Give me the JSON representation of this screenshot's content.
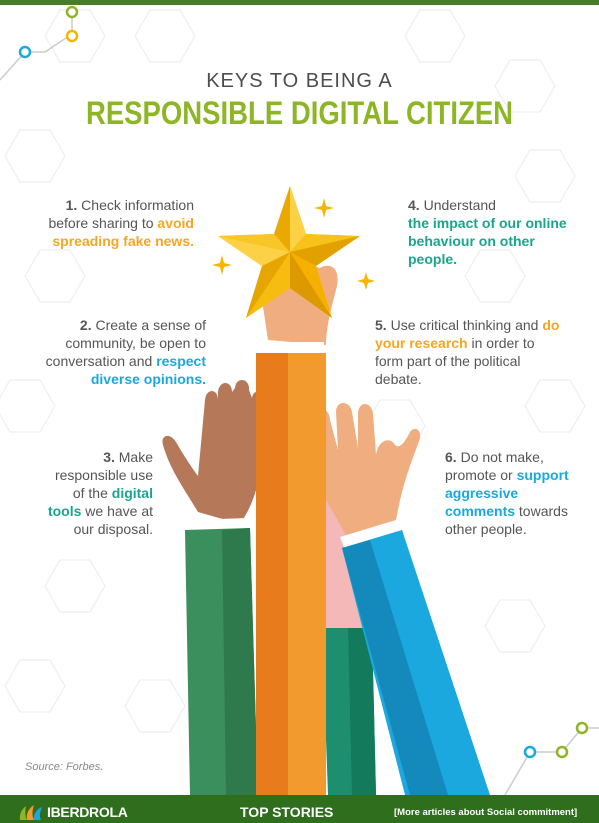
{
  "header": {
    "kicker": "KEYS TO BEING A",
    "title": "RESPONSIBLE DIGITAL CITIZEN"
  },
  "keys": [
    {
      "num": "1.",
      "pre": "Check information before sharing to",
      "highlight": "avoid spreading fake news.",
      "post": "",
      "highlight_color": "#f5a623"
    },
    {
      "num": "2.",
      "pre": "Create a sense of community, be open to conversation and",
      "highlight": "respect diverse opinions.",
      "post": "",
      "highlight_color": "#1ba8de"
    },
    {
      "num": "3.",
      "pre": "Make responsible use of the",
      "highlight": "digital tools",
      "post": "we have at our disposal.",
      "highlight_color": "#1aa58c"
    },
    {
      "num": "4.",
      "pre": "Understand",
      "highlight": "the impact of our online behaviour on other people.",
      "post": "",
      "highlight_color": "#1aa58c"
    },
    {
      "num": "5.",
      "pre": "Use critical thinking and",
      "highlight": "do your research",
      "post": "in order to form part of the political debate.",
      "highlight_color": "#f5a623"
    },
    {
      "num": "6.",
      "pre": "Do not make, promote or",
      "highlight": "support aggressive comments",
      "post": "towards other people.",
      "highlight_color": "#1ba8de"
    }
  ],
  "source": "Source: Forbes.",
  "footer": {
    "brand": "IBERDROLA",
    "top_stories": "TOP STORIES",
    "more_link": "[More articles about Social commitment]"
  },
  "colors": {
    "title_green": "#8db526",
    "footer_green": "#2e6e1c",
    "star_gold": "#f7b500",
    "sleeve_orange": "#e07a1f",
    "sleeve_blue": "#1ba8de",
    "sleeve_green": "#3a8f5c"
  },
  "icons": [
    "star-icon",
    "sparkle-icon",
    "iberdrola-logo-icon"
  ]
}
